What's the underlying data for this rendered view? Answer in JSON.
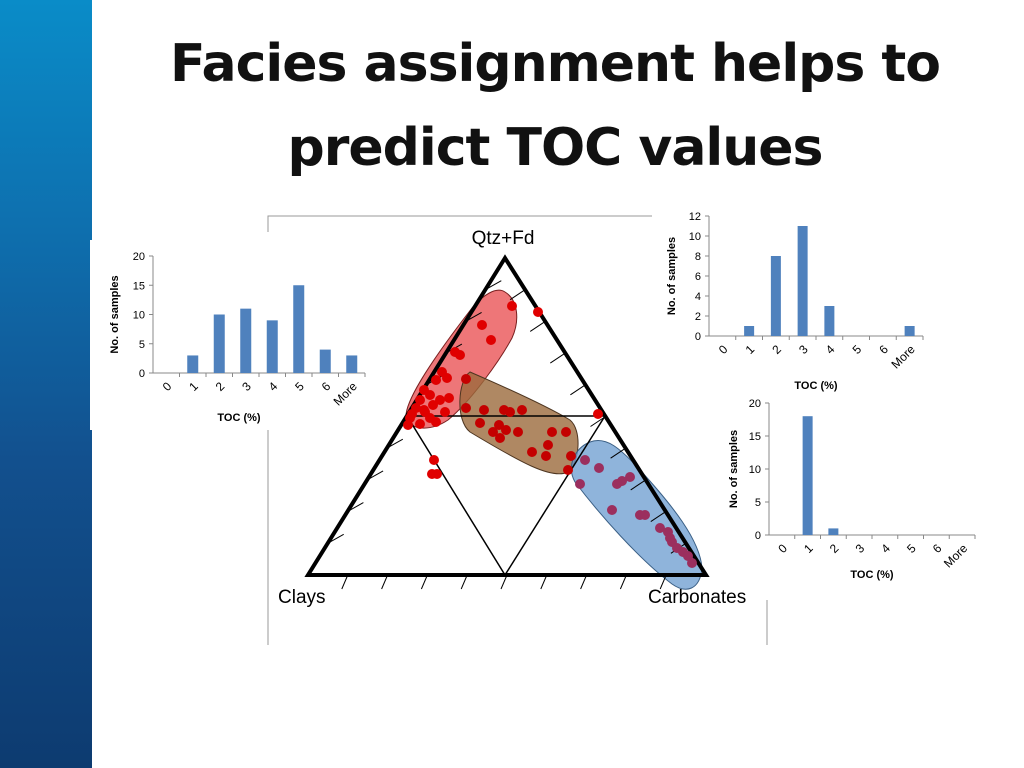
{
  "slide": {
    "title_line1": "Facies assignment helps to",
    "title_line2": "predict TOC values",
    "accent_color": "#0e6fae"
  },
  "ternary": {
    "apex_labels": {
      "top": "Qtz+Fd",
      "left": "Clays",
      "right": "Carbonates"
    },
    "facies_colors": {
      "siliceous": "#e8484b",
      "mixed": "#9b6a3c",
      "carbonate": "#6a9bcf"
    },
    "point_colors": {
      "siliceous": "#e00000",
      "mixed": "#c40000",
      "carbonate": "#9b2f5e"
    }
  },
  "chart_data": [
    {
      "type": "bar",
      "name": "histogram-left",
      "categories": [
        "0",
        "1",
        "2",
        "3",
        "4",
        "5",
        "6",
        "More"
      ],
      "values": [
        0,
        3,
        10,
        11,
        9,
        15,
        4,
        3
      ],
      "xlabel": "TOC (%)",
      "ylabel": "No. of samples",
      "ylim": [
        0,
        20
      ],
      "yticks": [
        0,
        5,
        10,
        15,
        20
      ],
      "color": "#4f81bd"
    },
    {
      "type": "bar",
      "name": "histogram-top-right",
      "categories": [
        "0",
        "1",
        "2",
        "3",
        "4",
        "5",
        "6",
        "More"
      ],
      "values": [
        0,
        1,
        8,
        11,
        3,
        0,
        0,
        1
      ],
      "xlabel": "TOC (%)",
      "ylabel": "No. of samples",
      "ylim": [
        0,
        12
      ],
      "yticks": [
        0,
        2,
        4,
        6,
        8,
        10,
        12
      ],
      "color": "#4f81bd"
    },
    {
      "type": "bar",
      "name": "histogram-bottom-right",
      "categories": [
        "0",
        "1",
        "2",
        "3",
        "4",
        "5",
        "6",
        "More"
      ],
      "values": [
        0,
        18,
        1,
        0,
        0,
        0,
        0,
        0
      ],
      "xlabel": "TOC (%)",
      "ylabel": "No. of samples",
      "ylim": [
        0,
        20
      ],
      "yticks": [
        0,
        5,
        10,
        15,
        20
      ],
      "color": "#4f81bd"
    }
  ]
}
